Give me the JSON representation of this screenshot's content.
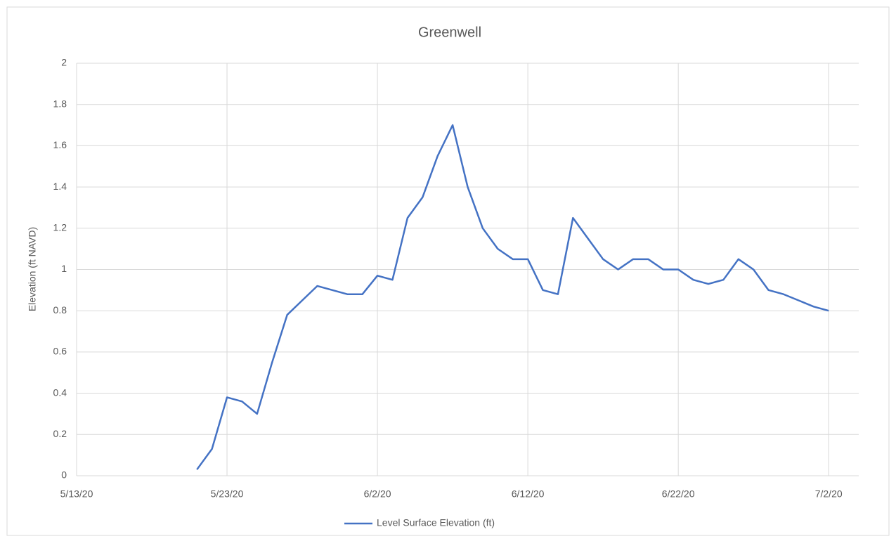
{
  "chart_data": {
    "type": "line",
    "title": "Greenwell",
    "ylabel": "Elevation (ft NAVD)",
    "x": [
      "5/21/20",
      "5/22/20",
      "5/23/20",
      "5/24/20",
      "5/25/20",
      "5/26/20",
      "5/27/20",
      "5/28/20",
      "5/29/20",
      "5/30/20",
      "5/31/20",
      "6/1/20",
      "6/2/20",
      "6/3/20",
      "6/4/20",
      "6/5/20",
      "6/6/20",
      "6/7/20",
      "6/8/20",
      "6/9/20",
      "6/10/20",
      "6/11/20",
      "6/12/20",
      "6/13/20",
      "6/14/20",
      "6/15/20",
      "6/16/20",
      "6/17/20",
      "6/18/20",
      "6/19/20",
      "6/20/20",
      "6/21/20",
      "6/22/20",
      "6/23/20",
      "6/24/20",
      "6/25/20",
      "6/26/20",
      "6/27/20",
      "6/28/20",
      "6/29/20",
      "6/30/20",
      "7/1/20",
      "7/2/20"
    ],
    "series": [
      {
        "name": "Level Surface Elevation (ft)",
        "color": "#4472c4",
        "values": [
          0.03,
          0.13,
          0.38,
          0.36,
          0.3,
          0.55,
          0.78,
          0.85,
          0.92,
          0.9,
          0.88,
          0.88,
          0.97,
          0.95,
          1.25,
          1.35,
          1.55,
          1.7,
          1.4,
          1.2,
          1.1,
          1.05,
          1.05,
          0.9,
          0.88,
          1.25,
          1.15,
          1.05,
          1.0,
          1.05,
          1.05,
          1.0,
          1.0,
          0.95,
          0.93,
          0.95,
          1.05,
          1.0,
          0.9,
          0.88,
          0.85,
          0.82,
          0.8
        ]
      }
    ],
    "xlim": [
      "5/13/20",
      "7/4/20"
    ],
    "xticks": [
      "5/13/20",
      "5/23/20",
      "6/2/20",
      "6/12/20",
      "6/22/20",
      "7/2/20"
    ],
    "ylim": [
      0,
      2
    ],
    "yticks": [
      0,
      0.2,
      0.4,
      0.6,
      0.8,
      1,
      1.2,
      1.4,
      1.6,
      1.8,
      2
    ],
    "grid": true,
    "legend": "bottom"
  }
}
